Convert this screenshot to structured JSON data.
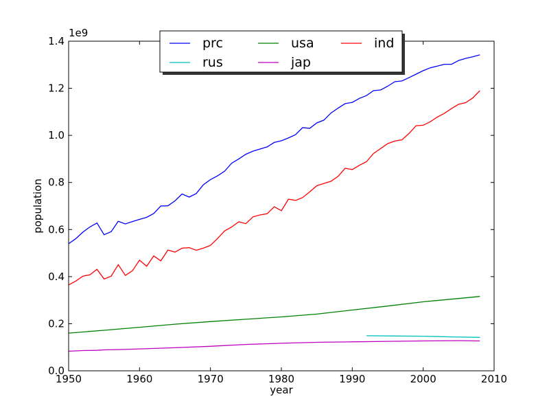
{
  "chart_data": {
    "type": "line",
    "xlabel": "year",
    "ylabel": "population",
    "xlim": [
      1950,
      2010
    ],
    "ylim": [
      0,
      1.4
    ],
    "y_multiplier_label": "1e9",
    "xticks": [
      "1950",
      "1960",
      "1970",
      "1980",
      "1990",
      "2000",
      "2010"
    ],
    "yticks": [
      "0.0",
      "0.2",
      "0.4",
      "0.6",
      "0.8",
      "1.0",
      "1.2",
      "1.4"
    ],
    "legend": {
      "placement": "top-center",
      "columns": 3
    },
    "series": [
      {
        "name": "prc",
        "color": "#0000ff",
        "x": [
          1950,
          1951,
          1952,
          1953,
          1954,
          1955,
          1956,
          1957,
          1958,
          1959,
          1960,
          1961,
          1962,
          1963,
          1964,
          1965,
          1966,
          1967,
          1968,
          1969,
          1970,
          1971,
          1972,
          1973,
          1974,
          1975,
          1976,
          1977,
          1978,
          1979,
          1980,
          1981,
          1982,
          1983,
          1984,
          1985,
          1986,
          1987,
          1988,
          1989,
          1990,
          1991,
          1992,
          1993,
          1994,
          1995,
          1996,
          1997,
          1998,
          1999,
          2000,
          2001,
          2002,
          2003,
          2004,
          2005,
          2006,
          2007,
          2008
        ],
        "y": [
          0.54,
          0.561,
          0.589,
          0.611,
          0.628,
          0.578,
          0.591,
          0.635,
          0.624,
          0.634,
          0.643,
          0.652,
          0.668,
          0.7,
          0.701,
          0.722,
          0.751,
          0.738,
          0.753,
          0.79,
          0.812,
          0.828,
          0.848,
          0.882,
          0.9,
          0.92,
          0.933,
          0.942,
          0.951,
          0.97,
          0.977,
          0.989,
          1.003,
          1.033,
          1.03,
          1.053,
          1.065,
          1.095,
          1.116,
          1.135,
          1.14,
          1.157,
          1.169,
          1.19,
          1.193,
          1.209,
          1.228,
          1.231,
          1.245,
          1.26,
          1.275,
          1.287,
          1.294,
          1.302,
          1.302,
          1.318,
          1.327,
          1.334,
          1.342
        ]
      },
      {
        "name": "usa",
        "color": "#008000",
        "x": [
          1950,
          1955,
          1960,
          1965,
          1970,
          1975,
          1980,
          1985,
          1990,
          1995,
          2000,
          2005,
          2008
        ],
        "y": [
          0.16,
          0.172,
          0.185,
          0.198,
          0.209,
          0.219,
          0.229,
          0.241,
          0.258,
          0.275,
          0.293,
          0.307,
          0.316
        ]
      },
      {
        "name": "ind",
        "color": "#ff0000",
        "x": [
          1950,
          1951,
          1952,
          1953,
          1954,
          1955,
          1956,
          1957,
          1958,
          1959,
          1960,
          1961,
          1962,
          1963,
          1964,
          1965,
          1966,
          1967,
          1968,
          1969,
          1970,
          1971,
          1972,
          1973,
          1974,
          1975,
          1976,
          1977,
          1978,
          1979,
          1980,
          1981,
          1982,
          1983,
          1984,
          1985,
          1986,
          1987,
          1988,
          1989,
          1990,
          1991,
          1992,
          1993,
          1994,
          1995,
          1996,
          1997,
          1998,
          1999,
          2000,
          2001,
          2002,
          2003,
          2004,
          2005,
          2006,
          2007,
          2008
        ],
        "y": [
          0.365,
          0.381,
          0.402,
          0.408,
          0.431,
          0.39,
          0.402,
          0.451,
          0.405,
          0.425,
          0.47,
          0.444,
          0.488,
          0.467,
          0.513,
          0.504,
          0.521,
          0.523,
          0.512,
          0.521,
          0.533,
          0.562,
          0.594,
          0.611,
          0.633,
          0.625,
          0.654,
          0.662,
          0.667,
          0.697,
          0.68,
          0.729,
          0.724,
          0.736,
          0.76,
          0.786,
          0.796,
          0.805,
          0.826,
          0.86,
          0.855,
          0.873,
          0.888,
          0.923,
          0.944,
          0.965,
          0.976,
          0.981,
          1.008,
          1.041,
          1.043,
          1.058,
          1.078,
          1.094,
          1.114,
          1.132,
          1.139,
          1.159,
          1.19
        ]
      },
      {
        "name": "rus",
        "color": "#00bfbf",
        "x": [
          1992,
          1996,
          2000,
          2004,
          2008
        ],
        "y": [
          0.149,
          0.148,
          0.147,
          0.144,
          0.142
        ]
      },
      {
        "name": "jap",
        "color": "#bf00bf",
        "x": [
          1950,
          1952,
          1954,
          1955,
          1957,
          1960,
          1965,
          1970,
          1975,
          1980,
          1985,
          1990,
          1995,
          2000,
          2005,
          2008
        ],
        "y": [
          0.083,
          0.086,
          0.087,
          0.089,
          0.09,
          0.093,
          0.098,
          0.104,
          0.112,
          0.117,
          0.121,
          0.123,
          0.125,
          0.127,
          0.128,
          0.127
        ]
      }
    ]
  }
}
